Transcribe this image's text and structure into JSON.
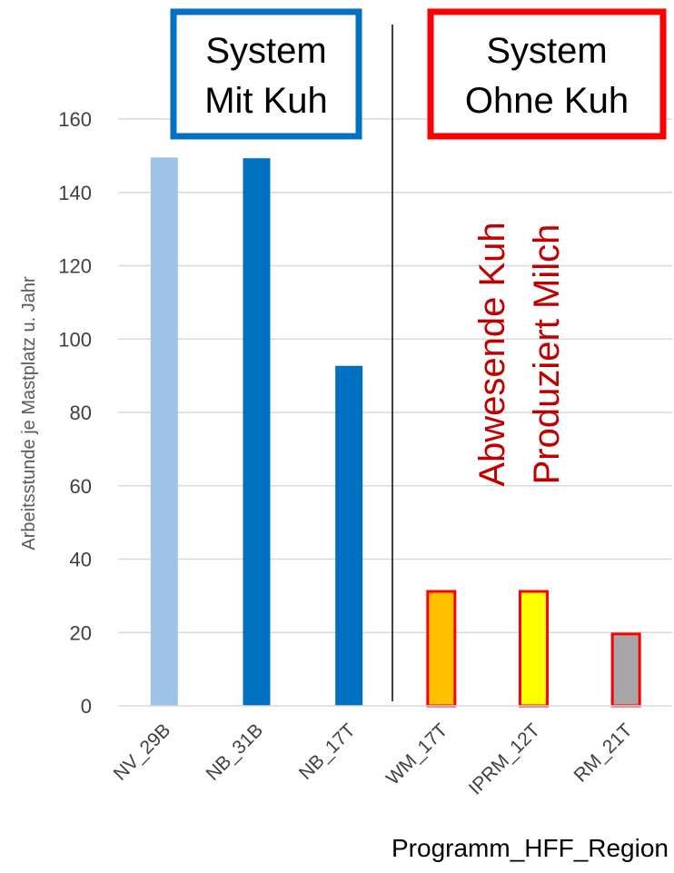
{
  "chart_data": {
    "type": "bar",
    "categories": [
      "NV_29B",
      "NB_31B",
      "NB_17T",
      "WM_17T",
      "IPRM_12T",
      "RM_21T"
    ],
    "values": [
      149.5,
      149.3,
      92.7,
      31.2,
      31.2,
      19.6
    ],
    "xlabel": "Programm_HFF_Region",
    "ylabel": "Arbeitsstunde je Mastplatz u. Jahr",
    "ylim": [
      0,
      160
    ],
    "yticks": [
      0,
      20,
      40,
      60,
      80,
      100,
      120,
      140,
      160
    ],
    "grid": true,
    "bar_colors": [
      "#9dc3e6",
      "#0070c0",
      "#0070c0",
      "#ffc000",
      "#ffff00",
      "#a6a6a6"
    ],
    "bar_outlines": [
      "",
      "",
      "",
      "#ff0000",
      "#ff0000",
      "#ff0000"
    ],
    "groups": [
      {
        "title_line1": "System",
        "title_line2": "Mit Kuh",
        "color": "#0070c0"
      },
      {
        "title_line1": "System",
        "title_line2": "Ohne Kuh",
        "color": "#ff0000"
      }
    ],
    "annotation": {
      "line1": "Abwesende Kuh",
      "line2": "Produziert Milch",
      "color": "#c00000"
    }
  }
}
